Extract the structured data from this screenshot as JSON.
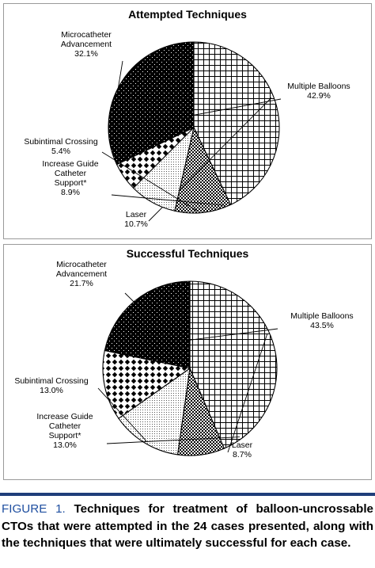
{
  "chart_data": [
    {
      "type": "pie",
      "title": "Attempted Techniques",
      "slices": [
        {
          "label": "Multiple Balloons",
          "value": 42.9,
          "value_label": "42.9%",
          "pattern": "grid"
        },
        {
          "label": "Laser",
          "value": 10.7,
          "value_label": "10.7%",
          "pattern": "checker"
        },
        {
          "label": "Increase Guide Catheter Support*",
          "value": 8.9,
          "value_label": "8.9%",
          "pattern": "dots"
        },
        {
          "label": "Subintimal Crossing",
          "value": 5.4,
          "value_label": "5.4%",
          "pattern": "diamond"
        },
        {
          "label": "Microcatheter Advancement",
          "value": 32.1,
          "value_label": "32.1%",
          "pattern": "black-speckle"
        }
      ]
    },
    {
      "type": "pie",
      "title": "Successful Techniques",
      "slices": [
        {
          "label": "Multiple Balloons",
          "value": 43.5,
          "value_label": "43.5%",
          "pattern": "grid"
        },
        {
          "label": "Laser",
          "value": 8.7,
          "value_label": "8.7%",
          "pattern": "checker"
        },
        {
          "label": "Increase Guide Catheter Support*",
          "value": 13.0,
          "value_label": "13.0%",
          "pattern": "dots"
        },
        {
          "label": "Subintimal Crossing",
          "value": 13.0,
          "value_label": "13.0%",
          "pattern": "diamond"
        },
        {
          "label": "Microcatheter Advancement",
          "value": 21.7,
          "value_label": "21.7%",
          "pattern": "black-speckle"
        }
      ]
    }
  ],
  "caption": {
    "figure": "FIGURE 1.",
    "text": "Techniques for treatment of balloon-uncrossable CTOs that were attempted in the 24 cases presented, along with the techniques that were ultimately successful for each case."
  },
  "colors": {
    "accent_rule": "#1f3e7a",
    "caption_figure": "#1f4fa0"
  }
}
